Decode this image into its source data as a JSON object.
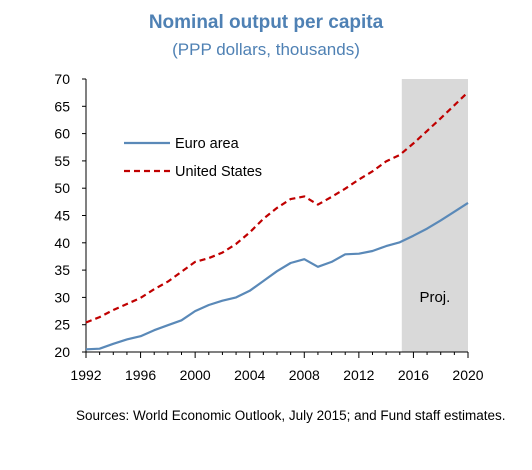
{
  "title": "Nominal output per capita",
  "subtitle": "(PPP dollars, thousands)",
  "source": "Sources: World Economic Outlook, July 2015; and Fund staff estimates.",
  "projection_label": "Proj.",
  "colors": {
    "title": "#4f81b4",
    "euro": "#5a89b8",
    "us": "#c00000",
    "projection_shade": "#d9d9d9",
    "axis": "#000000"
  },
  "chart_data": {
    "type": "line",
    "title": "Nominal output per capita",
    "subtitle": "(PPP dollars, thousands)",
    "xlabel": "",
    "ylabel": "",
    "xlim": [
      1992,
      2020
    ],
    "ylim": [
      20,
      70
    ],
    "x_ticks": [
      1992,
      1996,
      2000,
      2004,
      2008,
      2012,
      2016,
      2020
    ],
    "y_ticks": [
      20,
      25,
      30,
      35,
      40,
      45,
      50,
      55,
      60,
      65,
      70
    ],
    "grid": false,
    "legend": "upper-left",
    "projection_start": 2015,
    "x": [
      1992,
      1993,
      1994,
      1995,
      1996,
      1997,
      1998,
      1999,
      2000,
      2001,
      2002,
      2003,
      2004,
      2005,
      2006,
      2007,
      2008,
      2009,
      2010,
      2011,
      2012,
      2013,
      2014,
      2015,
      2016,
      2017,
      2018,
      2019,
      2020
    ],
    "series": [
      {
        "name": "Euro area",
        "style": "solid",
        "color": "#5a89b8",
        "values": [
          20.5,
          20.6,
          21.5,
          22.3,
          22.9,
          24.0,
          24.9,
          25.8,
          27.5,
          28.6,
          29.4,
          30.0,
          31.2,
          33.0,
          34.8,
          36.3,
          37.0,
          35.6,
          36.5,
          37.9,
          38.0,
          38.5,
          39.4,
          40.1,
          41.3,
          42.6,
          44.1,
          45.7,
          47.3
        ]
      },
      {
        "name": "United States",
        "style": "dashed",
        "color": "#c00000",
        "values": [
          25.4,
          26.4,
          27.7,
          28.8,
          29.9,
          31.5,
          32.9,
          34.7,
          36.5,
          37.2,
          38.2,
          39.8,
          41.9,
          44.4,
          46.4,
          48.0,
          48.5,
          47.0,
          48.4,
          49.9,
          51.6,
          53.1,
          54.9,
          56.1,
          58.2,
          60.5,
          62.8,
          65.2,
          67.6
        ]
      }
    ]
  }
}
